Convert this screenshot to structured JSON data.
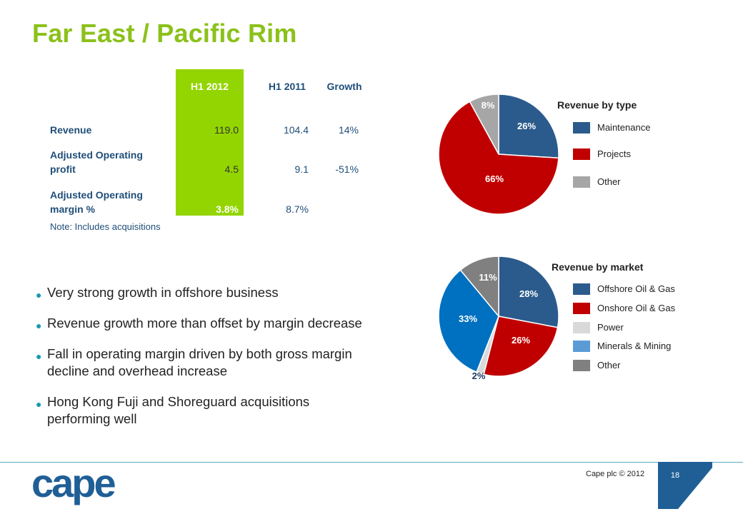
{
  "title": "Far East / Pacific Rim",
  "table": {
    "headers": [
      "H1 2012",
      "H1 2011",
      "Growth"
    ],
    "rows": [
      {
        "label_line1": "Revenue",
        "label_line2": "",
        "values": [
          "119.0",
          "104.4",
          "14%"
        ]
      },
      {
        "label_line1": "Adjusted Operating",
        "label_line2": "profit",
        "values": [
          "4.5",
          "9.1",
          "-51%"
        ]
      },
      {
        "label_line1": "Adjusted Operating",
        "label_line2": "margin %",
        "values": [
          "3.8%",
          "8.7%",
          ""
        ]
      }
    ],
    "note": "Note: Includes acquisitions",
    "highlight_color": "#93d500"
  },
  "bullets": [
    "Very strong growth in offshore business",
    "Revenue growth more than offset by margin decrease",
    "Fall in operating margin driven by both gross margin decline and overhead increase",
    "Hong Kong Fuji and Shoreguard acquisitions performing well"
  ],
  "chart_data": [
    {
      "type": "pie",
      "title": "Revenue by type",
      "labels": [
        "Maintenance",
        "Projects",
        "Other"
      ],
      "values": [
        26,
        66,
        8
      ],
      "value_labels": [
        "26%",
        "66%",
        "8%"
      ],
      "colors": [
        "#2b5b8c",
        "#c00000",
        "#a6a6a6"
      ]
    },
    {
      "type": "pie",
      "title": "Revenue by market",
      "labels": [
        "Offshore Oil & Gas",
        "Onshore Oil & Gas",
        "Power",
        "Minerals & Mining",
        "Other"
      ],
      "values": [
        28,
        26,
        2,
        33,
        11
      ],
      "value_labels": [
        "28%",
        "26%",
        "2%",
        "33%",
        "11%"
      ],
      "colors": [
        "#2b5b8c",
        "#c00000",
        "#d9d9d9",
        "#0070c0",
        "#808080"
      ],
      "legend_colors": [
        "#2b5b8c",
        "#c00000",
        "#d9d9d9",
        "#5b9bd5",
        "#808080"
      ]
    }
  ],
  "footer": {
    "copyright": "Cape plc © 2012",
    "page_number": "18",
    "logo_text": "cape",
    "logo_color": "#1f5f96",
    "tab_color": "#1f5f96"
  }
}
